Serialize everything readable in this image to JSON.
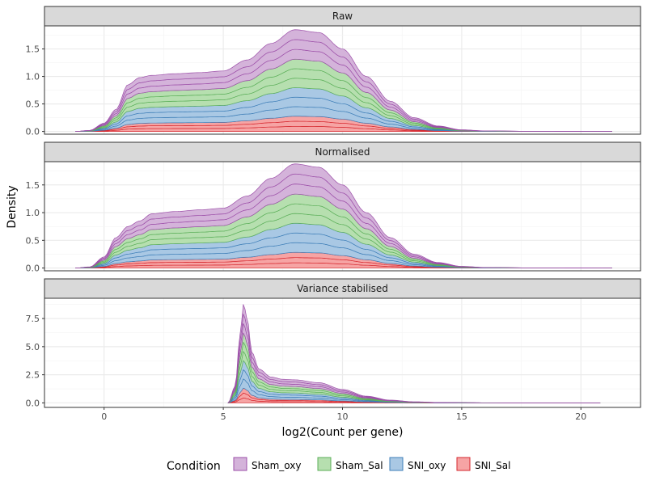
{
  "chart_data": {
    "type": "area",
    "stacked": true,
    "xlabel": "log2(Count per gene)",
    "ylabel": "Density",
    "xlim": [
      -2.5,
      22.5
    ],
    "x_ticks": [
      0,
      5,
      10,
      15,
      20
    ],
    "grid": true,
    "legend_placement": "bottom",
    "legend": {
      "title": "Condition",
      "entries": [
        {
          "name": "Sham_oxy",
          "fill": "#d4b3da",
          "stroke": "#9c4fa8"
        },
        {
          "name": "Sham_Sal",
          "fill": "#b6dfaf",
          "stroke": "#5caf5a"
        },
        {
          "name": "SNI_oxy",
          "fill": "#a9c8e4",
          "stroke": "#3f7fb8"
        },
        {
          "name": "SNI_Sal",
          "fill": "#f6a4a4",
          "stroke": "#d6282f"
        }
      ]
    },
    "layers_per_group": 3,
    "panels": [
      {
        "title": "Raw",
        "ylim": [
          -0.05,
          1.92
        ],
        "y_ticks": [
          "0.0",
          "0.5",
          "1.0",
          "1.5"
        ],
        "y_tick_values": [
          0,
          0.5,
          1.0,
          1.5
        ],
        "x": [
          -1.2,
          -0.6,
          0,
          0.5,
          1,
          1.5,
          2,
          3,
          4,
          5,
          6,
          7,
          8,
          9,
          10,
          11,
          12,
          13,
          14,
          15,
          16,
          18,
          21.3
        ],
        "total": [
          0,
          0.02,
          0.15,
          0.4,
          0.85,
          0.98,
          1.02,
          1.05,
          1.07,
          1.1,
          1.3,
          1.6,
          1.85,
          1.8,
          1.5,
          1.0,
          0.55,
          0.25,
          0.1,
          0.03,
          0.01,
          0.003,
          0
        ],
        "group_fractions": [
          {
            "name": "SNI_Sal",
            "value": 0.15
          },
          {
            "name": "SNI_oxy",
            "value": 0.28
          },
          {
            "name": "Sham_Sal",
            "value": 0.28
          },
          {
            "name": "Sham_oxy",
            "value": 0.29
          }
        ]
      },
      {
        "title": "Normalised",
        "ylim": [
          -0.05,
          1.92
        ],
        "y_ticks": [
          "0.0",
          "0.5",
          "1.0",
          "1.5"
        ],
        "y_tick_values": [
          0,
          0.5,
          1.0,
          1.5
        ],
        "x": [
          -1.2,
          -0.6,
          0,
          0.5,
          1,
          1.5,
          2,
          3,
          4,
          5,
          6,
          7,
          8,
          9,
          10,
          11,
          12,
          13,
          14,
          15,
          16,
          18,
          21.3
        ],
        "total": [
          0,
          0.02,
          0.2,
          0.55,
          0.75,
          0.85,
          0.98,
          1.02,
          1.05,
          1.08,
          1.3,
          1.62,
          1.88,
          1.82,
          1.5,
          1.0,
          0.55,
          0.25,
          0.1,
          0.03,
          0.01,
          0.003,
          0
        ],
        "group_fractions": [
          {
            "name": "SNI_Sal",
            "value": 0.15
          },
          {
            "name": "SNI_oxy",
            "value": 0.28
          },
          {
            "name": "Sham_Sal",
            "value": 0.28
          },
          {
            "name": "Sham_oxy",
            "value": 0.29
          }
        ]
      },
      {
        "title": "Variance stabilised",
        "ylim": [
          -0.4,
          9.3
        ],
        "y_ticks": [
          "0.0",
          "2.5",
          "5.0",
          "7.5"
        ],
        "y_tick_values": [
          0,
          2.5,
          5.0,
          7.5
        ],
        "x": [
          5.2,
          5.5,
          5.7,
          5.85,
          6.0,
          6.2,
          6.5,
          7.0,
          7.5,
          8.0,
          9.0,
          10.0,
          11.0,
          12.0,
          13.0,
          14.0,
          16.0,
          18.0,
          20.8
        ],
        "total": [
          0,
          1.5,
          6.0,
          8.8,
          7.5,
          4.5,
          3.0,
          2.3,
          2.1,
          2.05,
          1.8,
          1.2,
          0.6,
          0.25,
          0.1,
          0.04,
          0.01,
          0.003,
          0
        ],
        "group_fractions": [
          {
            "name": "SNI_Sal",
            "value": 0.15
          },
          {
            "name": "SNI_oxy",
            "value": 0.28
          },
          {
            "name": "Sham_Sal",
            "value": 0.28
          },
          {
            "name": "Sham_oxy",
            "value": 0.29
          }
        ]
      }
    ]
  }
}
